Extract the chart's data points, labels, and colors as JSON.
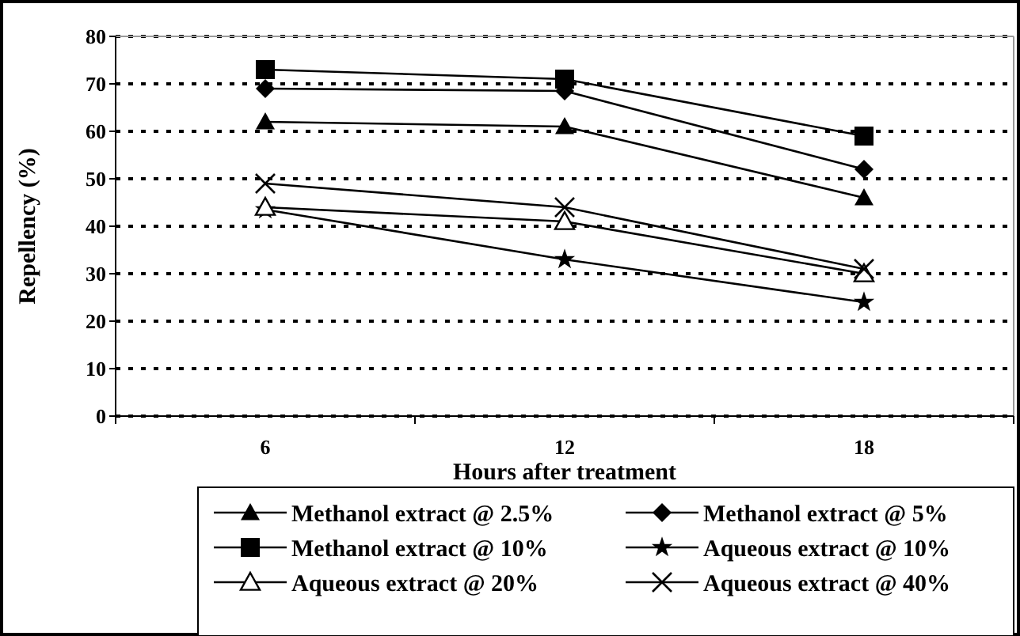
{
  "chart_data": {
    "type": "line",
    "xlabel": "Hours after treatment",
    "ylabel": "Repellency (%)",
    "categories": [
      "6",
      "12",
      "18"
    ],
    "ylim": [
      0,
      80
    ],
    "yticks": [
      0,
      10,
      20,
      30,
      40,
      50,
      60,
      70,
      80
    ],
    "grid": "y",
    "legend": "bottom",
    "line_style": "solid",
    "series": [
      {
        "name": "Methanol extract @ 2.5%",
        "color": "#000000",
        "marker": "triangle",
        "values": [
          62,
          61,
          46
        ]
      },
      {
        "name": "Methanol extract @ 5%",
        "color": "#000000",
        "marker": "diamond",
        "values": [
          69,
          68.5,
          52
        ]
      },
      {
        "name": "Methanol extract @ 10%",
        "color": "#000000",
        "marker": "square",
        "values": [
          73,
          71,
          59
        ]
      },
      {
        "name": "Aqueous extract @ 10%",
        "color": "#000000",
        "marker": "star",
        "values": [
          43.5,
          33,
          24
        ]
      },
      {
        "name": "Aqueous extract @ 20%",
        "color": "#000000",
        "marker": "triangle-open",
        "values": [
          44,
          41,
          30
        ]
      },
      {
        "name": "Aqueous extract @ 40%",
        "color": "#000000",
        "marker": "cross",
        "values": [
          49,
          44,
          31
        ]
      }
    ]
  }
}
